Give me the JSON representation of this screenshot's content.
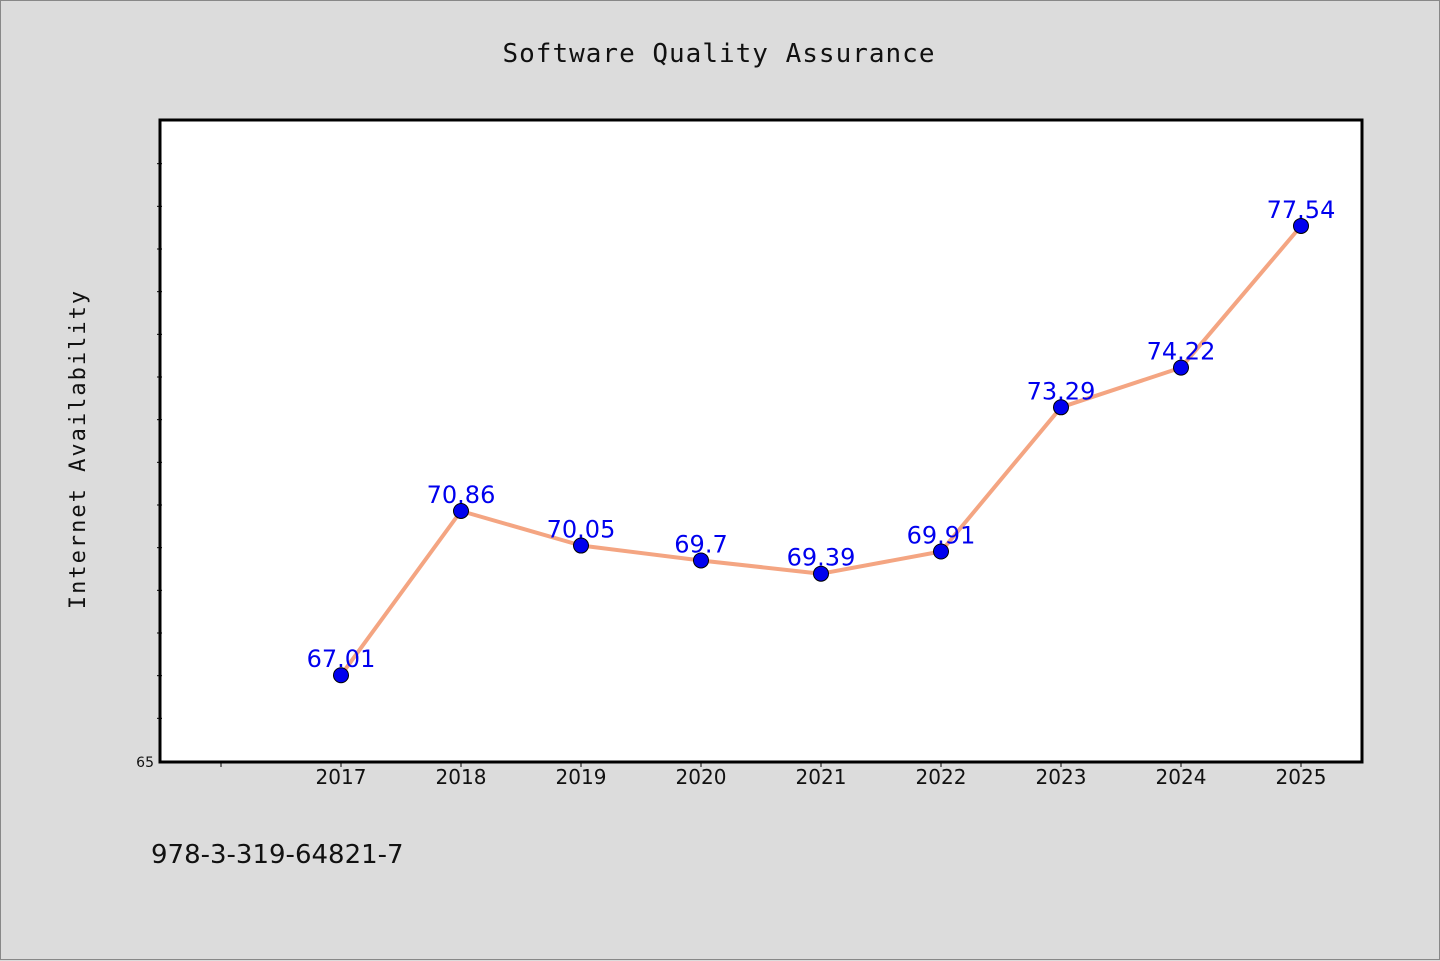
{
  "chart_data": {
    "type": "line",
    "title": "Software Quality Assurance",
    "xlabel": "",
    "ylabel": "Internet Availability",
    "x": [
      "2017",
      "2018",
      "2019",
      "2020",
      "2021",
      "2022",
      "2023",
      "2024",
      "2025"
    ],
    "series": [
      {
        "values": [
          67.01,
          70.86,
          70.05,
          69.7,
          69.39,
          69.91,
          73.29,
          74.22,
          77.54
        ]
      }
    ],
    "data_labels": [
      "67.01",
      "70.86",
      "70.05",
      "69.7",
      "69.39",
      "69.91",
      "73.29",
      "74.22",
      "77.54"
    ],
    "ylim": [
      65,
      80
    ],
    "yticks_labeled": [
      "65"
    ],
    "grid": false,
    "legend": "none",
    "colors": {
      "line": "#f4a582",
      "marker": "#0000ee",
      "label": "#0000ee",
      "plot_bg": "#ffffff",
      "figure_bg": "#dcdcdc"
    }
  },
  "footer": {
    "isbn": "978-3-319-64821-7"
  }
}
